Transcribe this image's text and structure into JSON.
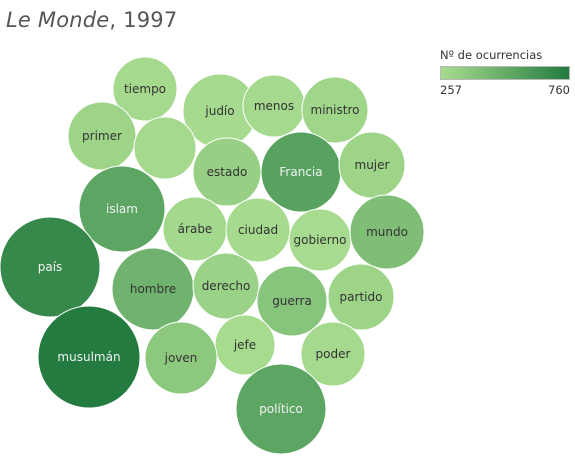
{
  "title": {
    "italic": "Le Monde",
    "rest": ", 1997"
  },
  "legend": {
    "title": "Nº de ocurrencias",
    "min_label": "257",
    "max_label": "760"
  },
  "colors": {
    "min": "#a8dc8f",
    "max": "#237b40",
    "text_dark": "#333333",
    "text_light": "#f2f2f2"
  },
  "chart_data": {
    "type": "packed-bubble",
    "value_range": [
      257,
      760
    ],
    "bubbles": [
      {
        "label": "tiempo",
        "value": 270
      },
      {
        "label": "judío",
        "value": 265
      },
      {
        "label": "menos",
        "value": 270
      },
      {
        "label": "ministro",
        "value": 290
      },
      {
        "label": "primer",
        "value": 300
      },
      {
        "label": "",
        "value": 270
      },
      {
        "label": "estado",
        "value": 320
      },
      {
        "label": "Francia",
        "value": 560
      },
      {
        "label": "mujer",
        "value": 300
      },
      {
        "label": "islam",
        "value": 540
      },
      {
        "label": "árabe",
        "value": 275
      },
      {
        "label": "ciudad",
        "value": 265
      },
      {
        "label": "gobierno",
        "value": 260
      },
      {
        "label": "mundo",
        "value": 410
      },
      {
        "label": "país",
        "value": 690
      },
      {
        "label": "hombre",
        "value": 470
      },
      {
        "label": "derecho",
        "value": 310
      },
      {
        "label": "guerra",
        "value": 380
      },
      {
        "label": "partido",
        "value": 300
      },
      {
        "label": "jefe",
        "value": 262
      },
      {
        "label": "joven",
        "value": 360
      },
      {
        "label": "poder",
        "value": 270
      },
      {
        "label": "musulmán",
        "value": 760
      },
      {
        "label": "político",
        "value": 540
      }
    ]
  }
}
